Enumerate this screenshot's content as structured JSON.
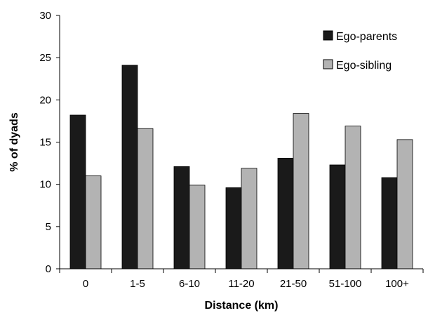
{
  "chart_data": {
    "type": "bar",
    "xlabel": "Distance (km)",
    "ylabel": "% of dyads",
    "ylim": [
      0,
      30
    ],
    "yticks": [
      "0",
      "5",
      "10",
      "15",
      "20",
      "25",
      "30"
    ],
    "categories": [
      "0",
      "1-5",
      "6-10",
      "11-20",
      "21-50",
      "51-100",
      "100+"
    ],
    "series": [
      {
        "name": "Ego-parents",
        "color": "#1a1a1a",
        "values": [
          18.2,
          24.1,
          12.1,
          9.6,
          13.1,
          12.3,
          10.8
        ]
      },
      {
        "name": "Ego-sibling",
        "color": "#b3b3b3",
        "values": [
          11.0,
          16.6,
          9.9,
          11.9,
          18.4,
          16.9,
          15.3
        ]
      }
    ],
    "legend": "top-right",
    "grid": false
  }
}
